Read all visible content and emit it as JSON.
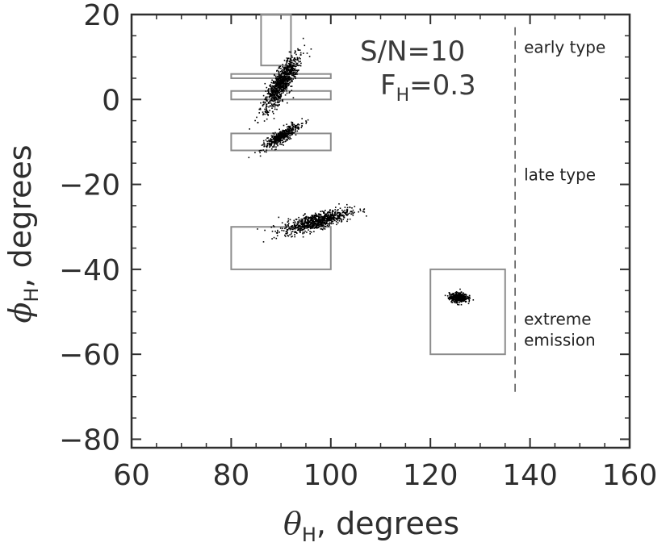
{
  "chart_data": {
    "type": "scatter",
    "title": "",
    "xlabel": {
      "symbol": "θ",
      "sub": "H",
      "rest": ", degrees"
    },
    "ylabel": {
      "symbol": "ϕ",
      "sub": "H",
      "rest": ", degrees"
    },
    "xlim": [
      60,
      160
    ],
    "ylim": [
      -82,
      20
    ],
    "xticks": [
      60,
      80,
      100,
      120,
      140,
      160
    ],
    "yticks": [
      -80,
      -60,
      -40,
      -20,
      0,
      20
    ],
    "grid": false,
    "colors": {
      "points": "#000000",
      "boxes": "#8c8c8c",
      "axes": "#2e2e2e",
      "divider": "#333333"
    },
    "annotations": {
      "sn": "S/N=10",
      "fh": {
        "main": "F",
        "sub": "H",
        "rest": "=0.3"
      }
    },
    "divider": {
      "x": 137,
      "y_range": [
        -70,
        17
      ]
    },
    "region_labels": [
      {
        "lines": [
          "early type"
        ],
        "y": 11
      },
      {
        "lines": [
          "late type"
        ],
        "y": -19
      },
      {
        "lines": [
          "extreme",
          "emission"
        ],
        "y": -53
      }
    ],
    "boxes": [
      {
        "x0": 86,
        "x1": 92,
        "y0": 8,
        "y1": 20
      },
      {
        "x0": 80,
        "x1": 100,
        "y0": 5,
        "y1": 6
      },
      {
        "x0": 80,
        "x1": 100,
        "y0": 0,
        "y1": 2
      },
      {
        "x0": 80,
        "x1": 100,
        "y0": -12,
        "y1": -8
      },
      {
        "x0": 80,
        "x1": 100,
        "y0": -40,
        "y1": -30
      },
      {
        "x0": 120,
        "x1": 135,
        "y0": -60,
        "y1": -40
      }
    ],
    "clusters": [
      {
        "cx": 90,
        "cy": 4,
        "sd_major": 3.6,
        "sd_minor": 0.9,
        "angle_deg": 64,
        "n": 900
      },
      {
        "cx": 90,
        "cy": -8.5,
        "sd_major": 2.2,
        "sd_minor": 0.6,
        "angle_deg": 38,
        "n": 450
      },
      {
        "cx": 97,
        "cy": -28.5,
        "sd_major": 3.5,
        "sd_minor": 0.9,
        "angle_deg": 18,
        "n": 800
      },
      {
        "cx": 125.5,
        "cy": -46.5,
        "sd_major": 0.9,
        "sd_minor": 0.55,
        "angle_deg": 0,
        "n": 450
      }
    ]
  }
}
